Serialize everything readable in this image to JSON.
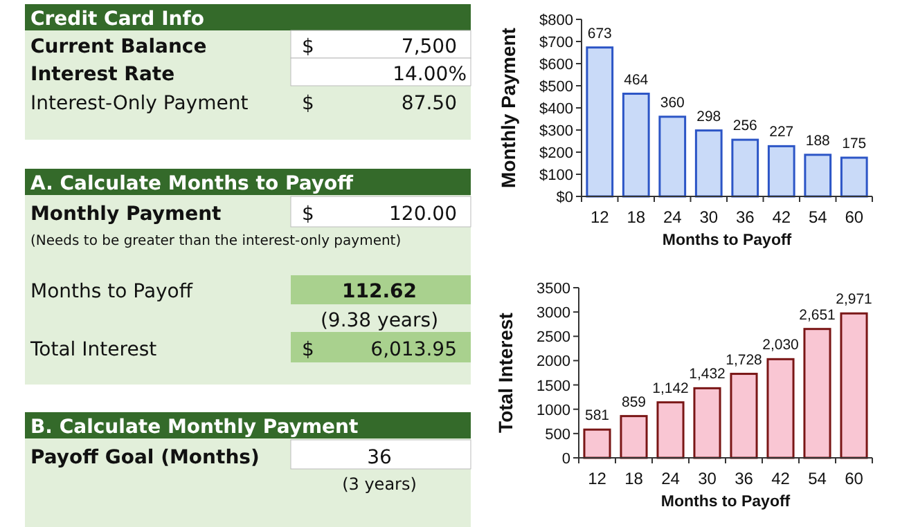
{
  "chart_data": [
    {
      "type": "other",
      "title": "Credit Card Info",
      "annotations": [
        "Current Balance",
        "$",
        "7,500",
        "Interest Rate",
        "14.00%",
        "Interest-Only Payment",
        "$",
        "87.50"
      ]
    },
    {
      "type": "other",
      "title": "A. Calculate Months to Payoff",
      "annotations": [
        "Monthly Payment",
        "$",
        "120.00",
        "(Needs to be greater than the interest-only payment)",
        "Months to Payoff",
        "112.62",
        "(9.38 years)",
        "Total Interest",
        "$",
        "6,013.95"
      ]
    },
    {
      "type": "other",
      "title": "B. Calculate Monthly Payment",
      "annotations": [
        "Payoff Goal (Months)",
        "36",
        "(3 years)"
      ]
    },
    {
      "type": "bar",
      "xlabel": "Months to Payoff",
      "ylabel": "Monthly Payment",
      "categories": [
        "12",
        "18",
        "24",
        "30",
        "36",
        "42",
        "54",
        "60"
      ],
      "values": [
        673,
        464,
        360,
        298,
        256,
        227,
        188,
        175
      ],
      "color": "#c9daf8",
      "ylim": [
        0,
        800
      ],
      "yticks": [
        {
          "value": 0,
          "label": "$0"
        },
        {
          "value": 100,
          "label": "$100"
        },
        {
          "value": 200,
          "label": "$200"
        },
        {
          "value": 300,
          "label": "$300"
        },
        {
          "value": 400,
          "label": "$400"
        },
        {
          "value": 500,
          "label": "$500"
        },
        {
          "value": 600,
          "label": "$600"
        },
        {
          "value": 700,
          "label": "$700"
        },
        {
          "value": 800,
          "label": "$800"
        }
      ],
      "data_labels": true,
      "grid": false
    },
    {
      "type": "bar",
      "xlabel": "Months to Payoff",
      "ylabel": "Total Interest",
      "categories": [
        "12",
        "18",
        "24",
        "30",
        "36",
        "42",
        "54",
        "60"
      ],
      "values": [
        581,
        859,
        1142,
        1432,
        1728,
        2030,
        2651,
        2971
      ],
      "value_labels": [
        "581",
        "859",
        "1,142",
        "1,432",
        "1,728",
        "2,030",
        "2,651",
        "2,971"
      ],
      "color": "#f9c6d3",
      "ylim": [
        0,
        3500
      ],
      "yticks": [
        0,
        500,
        1000,
        1500,
        2000,
        2500,
        3000,
        3500
      ],
      "grid": false
    }
  ]
}
